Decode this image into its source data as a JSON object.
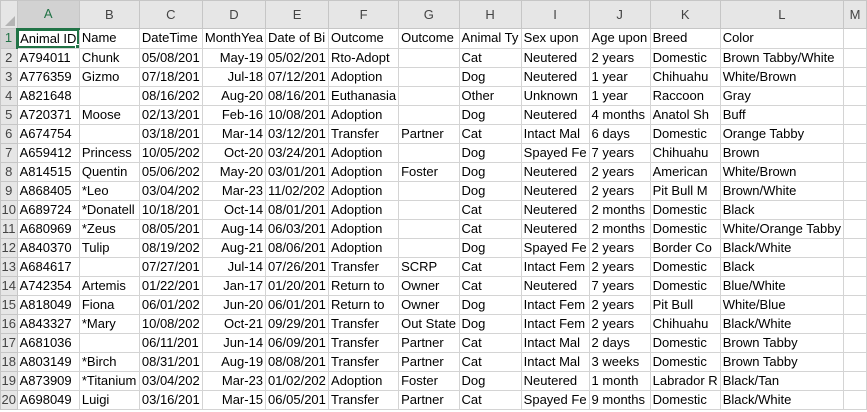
{
  "columns": [
    "A",
    "B",
    "C",
    "D",
    "E",
    "F",
    "G",
    "H",
    "I",
    "J",
    "K",
    "L",
    "M"
  ],
  "active_cell": "A1",
  "rows": [
    [
      "Animal ID",
      "Name",
      "DateTime",
      "MonthYea",
      "Date of Bi",
      "Outcome",
      "Outcome",
      "Animal Ty",
      "Sex upon",
      "Age upon",
      "Breed",
      "Color",
      ""
    ],
    [
      "A794011",
      "Chunk",
      "05/08/201",
      "May-19",
      "05/02/201",
      "Rto-Adopt",
      "",
      "Cat",
      "Neutered",
      "2 years",
      "Domestic",
      "Brown Tabby/White",
      ""
    ],
    [
      "A776359",
      "Gizmo",
      "07/18/201",
      "Jul-18",
      "07/12/201",
      "Adoption",
      "",
      "Dog",
      "Neutered",
      "1 year",
      "Chihuahu",
      "White/Brown",
      ""
    ],
    [
      "A821648",
      "",
      "08/16/202",
      "Aug-20",
      "08/16/201",
      "Euthanasia",
      "",
      "Other",
      "Unknown",
      "1 year",
      "Raccoon",
      "Gray",
      ""
    ],
    [
      "A720371",
      "Moose",
      "02/13/201",
      "Feb-16",
      "10/08/201",
      "Adoption",
      "",
      "Dog",
      "Neutered",
      "4 months",
      "Anatol Sh",
      "Buff",
      ""
    ],
    [
      "A674754",
      "",
      "03/18/201",
      "Mar-14",
      "03/12/201",
      "Transfer",
      "Partner",
      "Cat",
      "Intact Mal",
      "6 days",
      "Domestic",
      "Orange Tabby",
      ""
    ],
    [
      "A659412",
      "Princess",
      "10/05/202",
      "Oct-20",
      "03/24/201",
      "Adoption",
      "",
      "Dog",
      "Spayed Fe",
      "7 years",
      "Chihuahu",
      "Brown",
      ""
    ],
    [
      "A814515",
      "Quentin",
      "05/06/202",
      "May-20",
      "03/01/201",
      "Adoption",
      "Foster",
      "Dog",
      "Neutered",
      "2 years",
      "American",
      "White/Brown",
      ""
    ],
    [
      "A868405",
      "*Leo",
      "03/04/202",
      "Mar-23",
      "11/02/202",
      "Adoption",
      "",
      "Dog",
      "Neutered",
      "2 years",
      "Pit Bull M",
      "Brown/White",
      ""
    ],
    [
      "A689724",
      "*Donatell",
      "10/18/201",
      "Oct-14",
      "08/01/201",
      "Adoption",
      "",
      "Cat",
      "Neutered",
      "2 months",
      "Domestic",
      "Black",
      ""
    ],
    [
      "A680969",
      "*Zeus",
      "08/05/201",
      "Aug-14",
      "06/03/201",
      "Adoption",
      "",
      "Cat",
      "Neutered",
      "2 months",
      "Domestic",
      "White/Orange Tabby",
      ""
    ],
    [
      "A840370",
      "Tulip",
      "08/19/202",
      "Aug-21",
      "08/06/201",
      "Adoption",
      "",
      "Dog",
      "Spayed Fe",
      "2 years",
      "Border Co",
      "Black/White",
      ""
    ],
    [
      "A684617",
      "",
      "07/27/201",
      "Jul-14",
      "07/26/201",
      "Transfer",
      "SCRP",
      "Cat",
      "Intact Fem",
      "2 years",
      "Domestic",
      "Black",
      ""
    ],
    [
      "A742354",
      "Artemis",
      "01/22/201",
      "Jan-17",
      "01/20/201",
      "Return to",
      "Owner",
      "Cat",
      "Neutered",
      "7 years",
      "Domestic",
      "Blue/White",
      ""
    ],
    [
      "A818049",
      "Fiona",
      "06/01/202",
      "Jun-20",
      "06/01/201",
      "Return to",
      "Owner",
      "Dog",
      "Intact Fem",
      "2 years",
      "Pit Bull",
      "White/Blue",
      ""
    ],
    [
      "A843327",
      "*Mary",
      "10/08/202",
      "Oct-21",
      "09/29/201",
      "Transfer",
      "Out State",
      "Dog",
      "Intact Fem",
      "2 years",
      "Chihuahu",
      "Black/White",
      ""
    ],
    [
      "A681036",
      "",
      "06/11/201",
      "Jun-14",
      "06/09/201",
      "Transfer",
      "Partner",
      "Cat",
      "Intact Mal",
      "2 days",
      "Domestic",
      "Brown Tabby",
      ""
    ],
    [
      "A803149",
      "*Birch",
      "08/31/201",
      "Aug-19",
      "08/08/201",
      "Transfer",
      "Partner",
      "Cat",
      "Intact Mal",
      "3 weeks",
      "Domestic",
      "Brown Tabby",
      ""
    ],
    [
      "A873909",
      "*Titanium",
      "03/04/202",
      "Mar-23",
      "01/02/202",
      "Adoption",
      "Foster",
      "Dog",
      "Neutered",
      "1 month",
      "Labrador R",
      "Black/Tan",
      ""
    ],
    [
      "A698049",
      "Luigi",
      "03/16/201",
      "Mar-15",
      "06/05/201",
      "Transfer",
      "Partner",
      "Cat",
      "Spayed Fe",
      "9 months",
      "Domestic",
      "Black/White",
      ""
    ]
  ]
}
